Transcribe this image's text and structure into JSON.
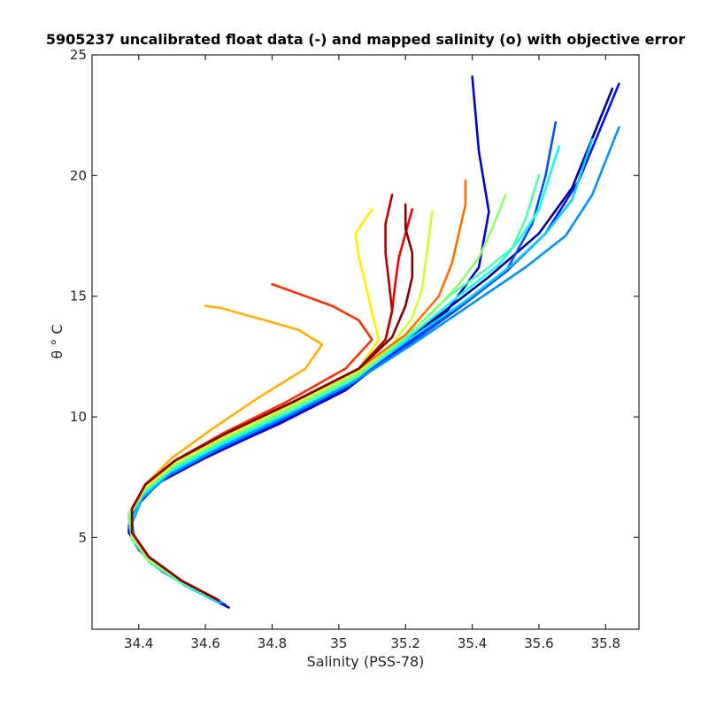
{
  "chart_data": {
    "type": "line",
    "title": "5905237 uncalibrated float data (-) and mapped salinity (o) with objective error",
    "xlabel": "Salinity (PSS-78)",
    "ylabel": "θ ° C",
    "xlim": [
      34.26,
      35.9
    ],
    "ylim": [
      1.2,
      25
    ],
    "xticks": [
      "34.4",
      "34.6",
      "34.8",
      "35",
      "35.2",
      "35.4",
      "35.6",
      "35.8"
    ],
    "yticks": [
      "5",
      "10",
      "15",
      "20",
      "25"
    ],
    "grid": false,
    "legend": "none",
    "colormap": "jet",
    "series": [
      {
        "color": "#00008f",
        "x": [
          34.67,
          34.6,
          34.5,
          34.42,
          34.37,
          34.38,
          34.45,
          34.6,
          34.8,
          35.0,
          35.15,
          35.3,
          35.45,
          35.6,
          35.7,
          35.82
        ],
        "y": [
          2.1,
          2.6,
          3.4,
          4.2,
          5.2,
          6.2,
          7.2,
          8.3,
          9.6,
          11.0,
          12.6,
          14.2,
          15.8,
          17.6,
          19.5,
          23.6
        ]
      },
      {
        "color": "#0000c8",
        "x": [
          34.66,
          34.58,
          34.48,
          34.41,
          34.37,
          34.39,
          34.46,
          34.61,
          34.82,
          35.02,
          35.17,
          35.32,
          35.42,
          35.45,
          35.42,
          35.4
        ],
        "y": [
          2.2,
          2.8,
          3.6,
          4.4,
          5.3,
          6.3,
          7.3,
          8.4,
          9.7,
          11.1,
          12.7,
          14.3,
          16.2,
          18.5,
          21.0,
          24.1
        ]
      },
      {
        "color": "#0010ff",
        "x": [
          34.66,
          34.57,
          34.47,
          34.4,
          34.37,
          34.4,
          34.47,
          34.62,
          34.82,
          35.02,
          35.18,
          35.34,
          35.5,
          35.62,
          35.72,
          35.84
        ],
        "y": [
          2.2,
          2.8,
          3.6,
          4.5,
          5.4,
          6.4,
          7.4,
          8.5,
          9.8,
          11.2,
          12.8,
          14.4,
          16.0,
          17.6,
          19.8,
          23.8
        ]
      },
      {
        "color": "#0050ff",
        "x": [
          34.65,
          34.56,
          34.46,
          34.4,
          34.37,
          34.4,
          34.48,
          34.63,
          34.83,
          35.03,
          35.2,
          35.36,
          35.5,
          35.58,
          35.62,
          35.65
        ],
        "y": [
          2.3,
          2.9,
          3.7,
          4.6,
          5.5,
          6.5,
          7.5,
          8.6,
          9.9,
          11.3,
          12.9,
          14.5,
          16.0,
          18.0,
          20.0,
          22.2
        ]
      },
      {
        "color": "#0090ff",
        "x": [
          34.65,
          34.55,
          34.45,
          34.39,
          34.38,
          34.41,
          34.49,
          34.64,
          34.84,
          35.04,
          35.22,
          35.4,
          35.56,
          35.68,
          35.76,
          35.84
        ],
        "y": [
          2.3,
          3.0,
          3.8,
          4.7,
          5.6,
          6.6,
          7.6,
          8.7,
          10.0,
          11.4,
          13.0,
          14.7,
          16.2,
          17.5,
          19.2,
          22.0
        ]
      },
      {
        "color": "#00d0ff",
        "x": [
          34.64,
          34.54,
          34.44,
          34.39,
          34.38,
          34.41,
          34.49,
          34.64,
          34.84,
          35.04,
          35.2,
          35.38,
          35.52,
          35.62,
          35.7,
          35.76
        ],
        "y": [
          2.3,
          3.0,
          3.9,
          4.8,
          5.7,
          6.7,
          7.7,
          8.8,
          10.1,
          11.5,
          13.1,
          14.8,
          16.3,
          17.6,
          19.0,
          21.5
        ]
      },
      {
        "color": "#10ffef",
        "x": [
          34.64,
          34.53,
          34.44,
          34.38,
          34.37,
          34.41,
          34.5,
          34.65,
          34.85,
          35.05,
          35.2,
          35.35,
          35.48,
          35.55,
          35.6,
          35.66
        ],
        "y": [
          2.4,
          3.1,
          4.0,
          4.9,
          5.8,
          6.8,
          7.8,
          8.9,
          10.2,
          11.6,
          13.2,
          14.9,
          16.3,
          17.5,
          18.6,
          21.2
        ]
      },
      {
        "color": "#50ffaf",
        "x": [
          34.64,
          34.53,
          34.43,
          34.38,
          34.37,
          34.41,
          34.5,
          34.65,
          34.86,
          35.06,
          35.2,
          35.33,
          35.44,
          35.52,
          35.56,
          35.6
        ],
        "y": [
          2.4,
          3.1,
          4.0,
          5.0,
          5.9,
          6.9,
          7.9,
          9.0,
          10.3,
          11.7,
          13.3,
          15.0,
          16.1,
          17.0,
          18.2,
          20.0
        ]
      },
      {
        "color": "#90ff6f",
        "x": [
          34.64,
          34.53,
          34.43,
          34.38,
          34.37,
          34.42,
          34.51,
          34.66,
          34.86,
          35.06,
          35.18,
          35.28,
          35.36,
          35.42,
          35.46,
          35.5
        ],
        "y": [
          2.4,
          3.2,
          4.1,
          5.0,
          6.0,
          7.0,
          8.0,
          9.1,
          10.4,
          11.8,
          13.1,
          14.3,
          15.5,
          16.6,
          17.8,
          19.2
        ]
      },
      {
        "color": "#cfff30",
        "x": [
          34.64,
          34.53,
          34.43,
          34.38,
          34.38,
          34.42,
          34.51,
          34.66,
          34.86,
          35.06,
          35.16,
          35.22,
          35.25,
          35.26,
          35.27,
          35.28
        ],
        "y": [
          2.4,
          3.2,
          4.1,
          5.1,
          6.1,
          7.1,
          8.1,
          9.2,
          10.5,
          11.9,
          13.0,
          14.1,
          15.3,
          16.4,
          17.4,
          18.5
        ]
      },
      {
        "color": "#ffef00",
        "x": [
          34.64,
          34.53,
          34.43,
          34.38,
          34.38,
          34.42,
          34.51,
          34.66,
          34.86,
          35.06,
          35.12,
          35.1,
          35.08,
          35.06,
          35.05,
          35.1
        ],
        "y": [
          2.4,
          3.2,
          4.2,
          5.1,
          6.1,
          7.1,
          8.2,
          9.3,
          10.6,
          12.0,
          13.2,
          14.3,
          15.5,
          16.6,
          17.6,
          18.6
        ]
      },
      {
        "color": "#ffb000",
        "x": [
          34.64,
          34.53,
          34.43,
          34.38,
          34.38,
          34.42,
          34.5,
          34.62,
          34.76,
          34.9,
          34.95,
          34.88,
          34.78,
          34.7,
          34.65,
          34.6
        ],
        "y": [
          2.4,
          3.2,
          4.2,
          5.2,
          6.2,
          7.2,
          8.3,
          9.5,
          10.8,
          12.0,
          13.0,
          13.6,
          14.0,
          14.3,
          14.5,
          14.6
        ]
      },
      {
        "color": "#ff7000",
        "x": [
          34.64,
          34.53,
          34.43,
          34.38,
          34.38,
          34.42,
          34.51,
          34.66,
          34.86,
          35.06,
          35.2,
          35.3,
          35.34,
          35.36,
          35.38,
          35.38
        ],
        "y": [
          2.4,
          3.2,
          4.2,
          5.2,
          6.2,
          7.2,
          8.2,
          9.3,
          10.6,
          12.0,
          13.4,
          15.0,
          16.4,
          17.6,
          18.8,
          19.8
        ]
      },
      {
        "color": "#ff3000",
        "x": [
          34.64,
          34.53,
          34.43,
          34.38,
          34.38,
          34.42,
          34.51,
          34.65,
          34.84,
          35.02,
          35.1,
          35.06,
          34.98,
          34.9,
          34.84,
          34.8
        ],
        "y": [
          2.4,
          3.2,
          4.2,
          5.2,
          6.2,
          7.2,
          8.2,
          9.3,
          10.6,
          12.0,
          13.2,
          14.0,
          14.6,
          15.0,
          15.3,
          15.5
        ]
      },
      {
        "color": "#ef0000",
        "x": [
          34.64,
          34.53,
          34.43,
          34.38,
          34.38,
          34.42,
          34.51,
          34.66,
          34.86,
          35.06,
          35.14,
          35.16,
          35.17,
          35.18,
          35.2,
          35.22
        ],
        "y": [
          2.4,
          3.2,
          4.2,
          5.2,
          6.2,
          7.2,
          8.2,
          9.3,
          10.6,
          12.0,
          13.2,
          14.4,
          15.6,
          16.6,
          17.6,
          18.6
        ]
      },
      {
        "color": "#b00000",
        "x": [
          34.64,
          34.53,
          34.43,
          34.38,
          34.38,
          34.42,
          34.51,
          34.66,
          34.86,
          35.06,
          35.14,
          35.16,
          35.15,
          35.14,
          35.14,
          35.16
        ],
        "y": [
          2.4,
          3.2,
          4.2,
          5.2,
          6.2,
          7.2,
          8.2,
          9.3,
          10.6,
          12.0,
          13.2,
          14.4,
          15.6,
          16.8,
          18.0,
          19.2
        ]
      },
      {
        "color": "#800000",
        "x": [
          34.64,
          34.53,
          34.43,
          34.38,
          34.38,
          34.42,
          34.51,
          34.66,
          34.86,
          35.06,
          35.16,
          35.2,
          35.22,
          35.22,
          35.2,
          35.2
        ],
        "y": [
          2.4,
          3.2,
          4.2,
          5.2,
          6.2,
          7.2,
          8.2,
          9.3,
          10.6,
          12.0,
          13.3,
          14.6,
          15.8,
          16.8,
          17.8,
          18.8
        ]
      }
    ]
  }
}
